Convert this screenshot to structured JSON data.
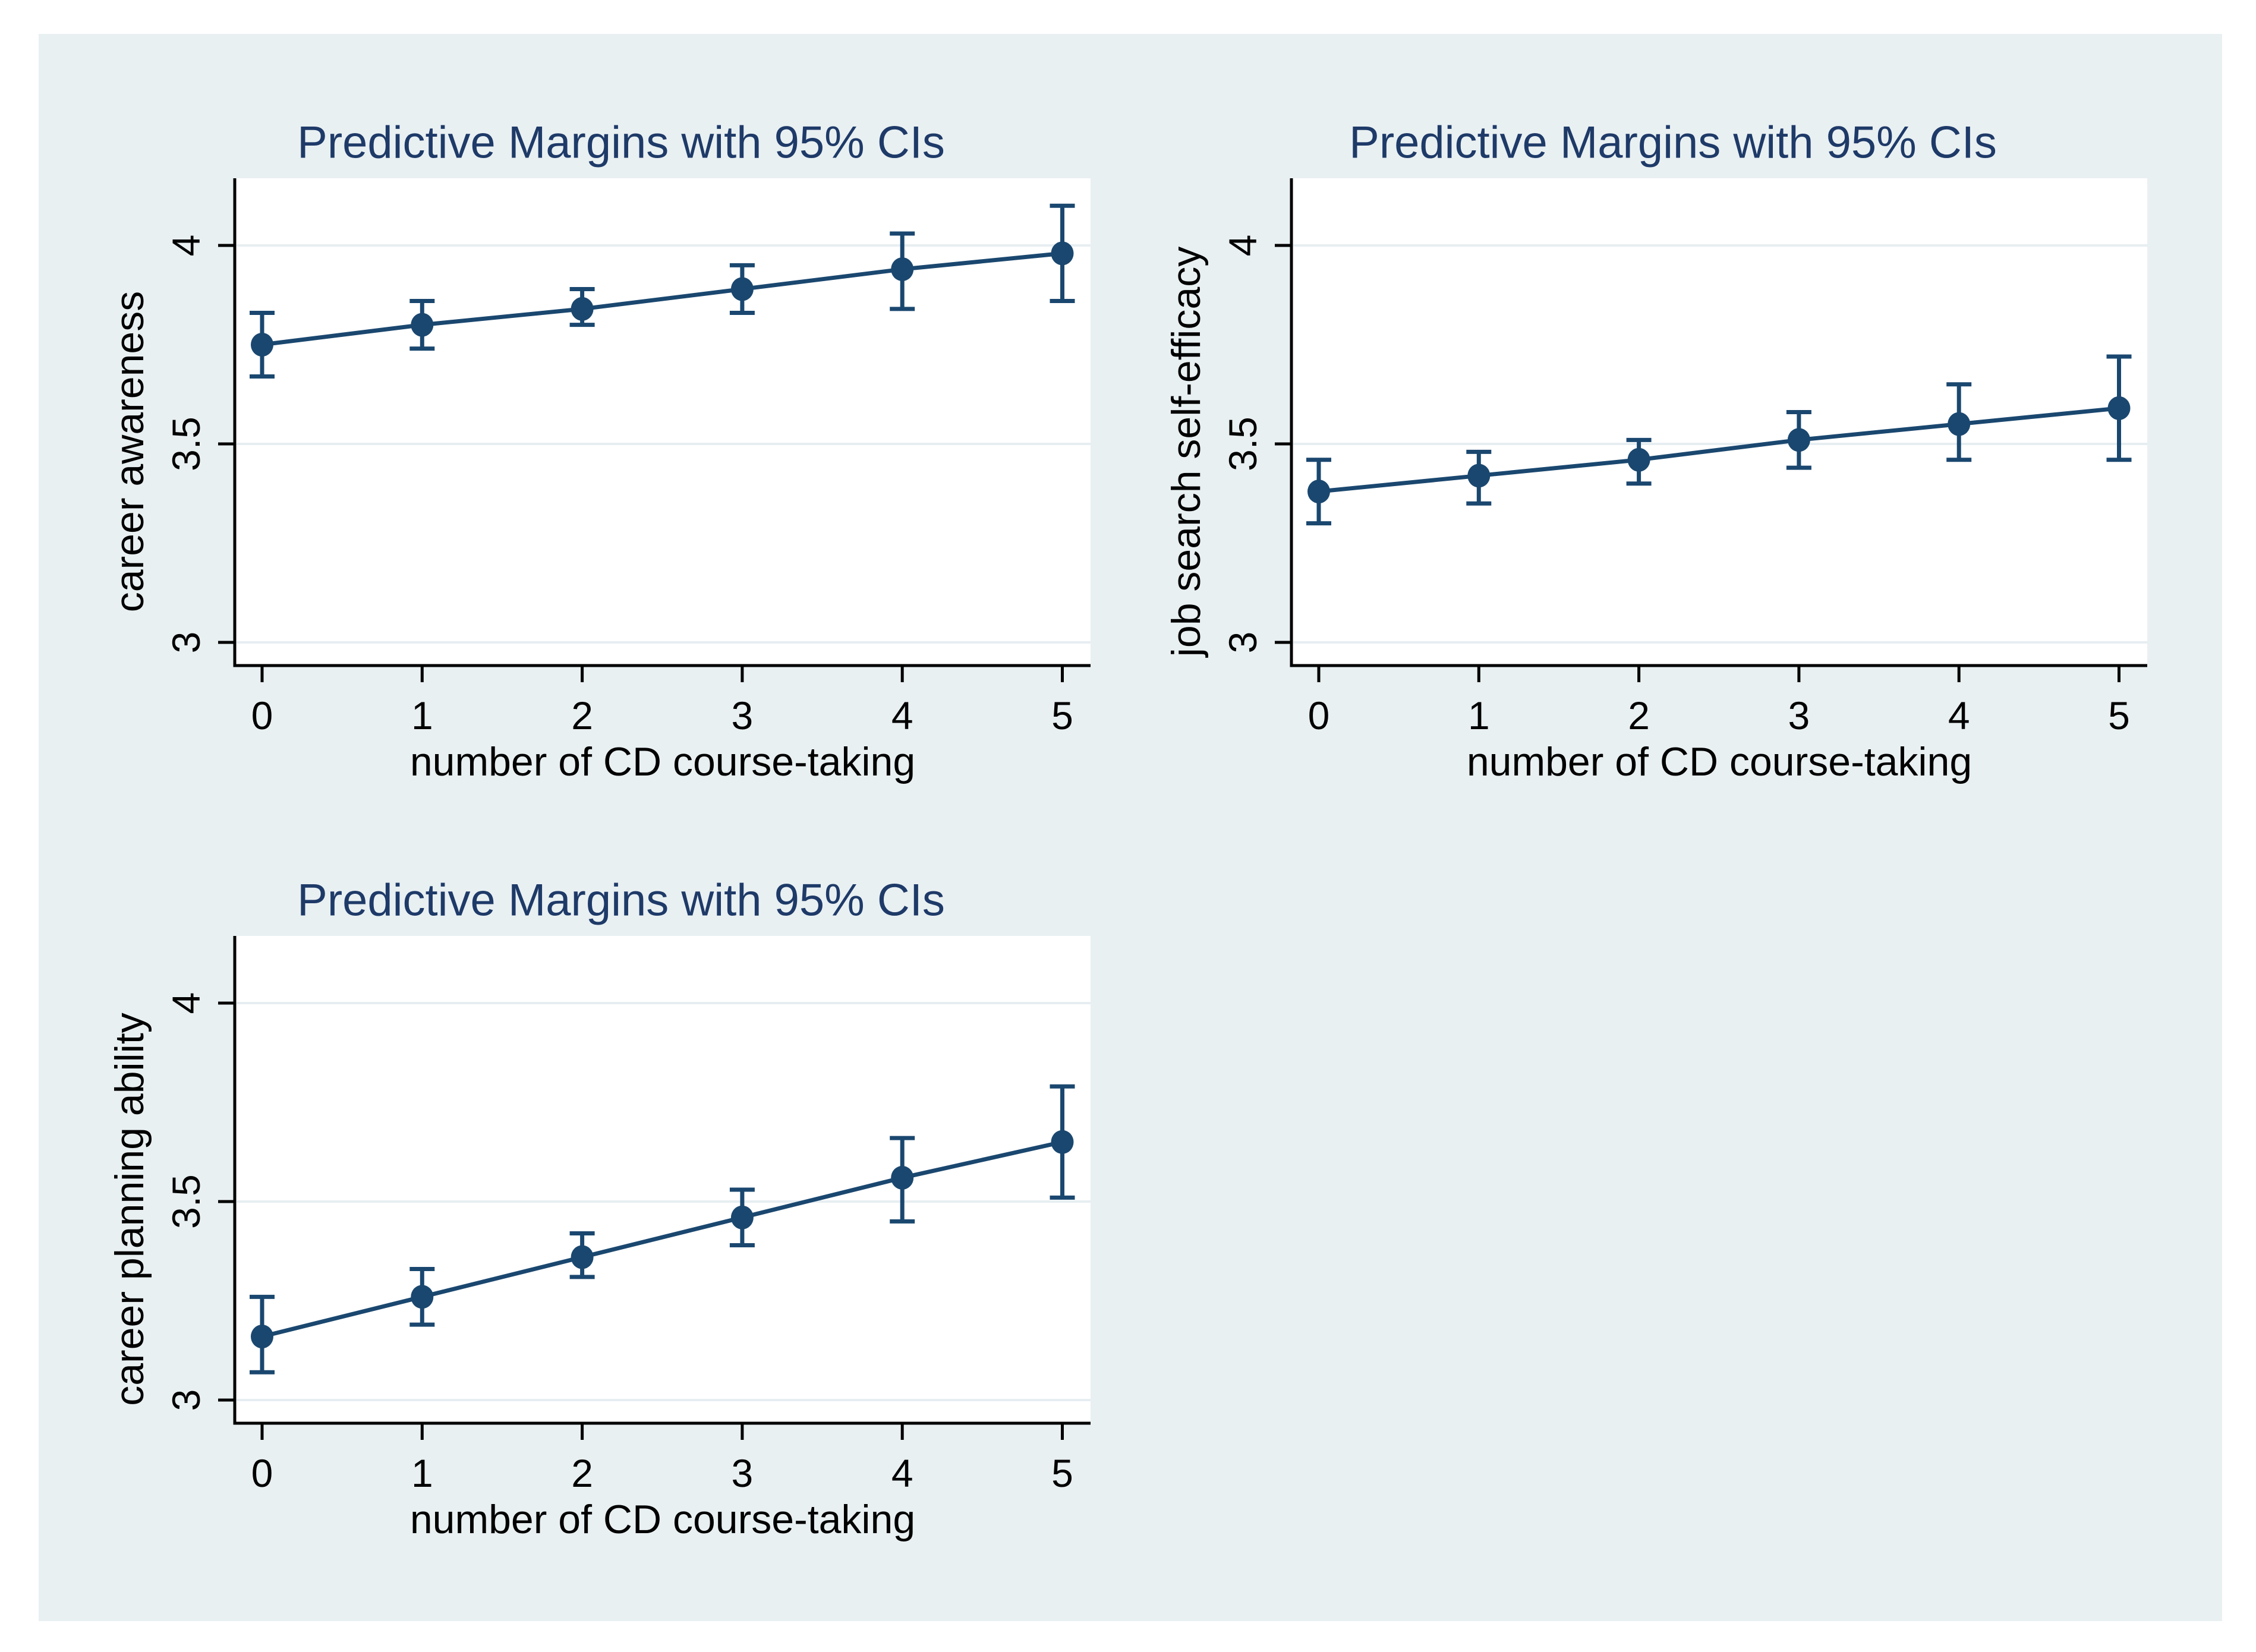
{
  "colors": {
    "series_navy": "#1a476f",
    "title_navy": "#1e3a68",
    "axis_black": "#000000",
    "gridline": "#e7eef2",
    "plot_background": "#ffffff",
    "canvas_background": "#e9f0f2",
    "page_background": "#ffffff"
  },
  "chart_data": [
    {
      "type": "line",
      "title": "Predictive Margins with 95% CIs",
      "xlabel": "number of CD course-taking",
      "ylabel": "career awareness",
      "legend": "none",
      "grid": "horizontal",
      "error_bars": "95% confidence intervals, capped",
      "x": [
        0,
        1,
        2,
        3,
        4,
        5
      ],
      "x_tick_labels": [
        "0",
        "1",
        "2",
        "3",
        "4",
        "5"
      ],
      "y_ticks": [
        3,
        3.5,
        4
      ],
      "y_tick_labels": [
        "3",
        "3.5",
        "4"
      ],
      "ylim": [
        2.94,
        4.17
      ],
      "values": [
        3.75,
        3.8,
        3.84,
        3.89,
        3.94,
        3.98
      ],
      "ci_low": [
        3.67,
        3.74,
        3.8,
        3.83,
        3.84,
        3.86
      ],
      "ci_high": [
        3.83,
        3.86,
        3.89,
        3.95,
        4.03,
        4.1
      ]
    },
    {
      "type": "line",
      "title": "Predictive Margins with 95% CIs",
      "xlabel": "number of CD course-taking",
      "ylabel": "job search self-efficacy",
      "legend": "none",
      "grid": "horizontal",
      "error_bars": "95% confidence intervals, capped",
      "x": [
        0,
        1,
        2,
        3,
        4,
        5
      ],
      "x_tick_labels": [
        "0",
        "1",
        "2",
        "3",
        "4",
        "5"
      ],
      "y_ticks": [
        3,
        3.5,
        4
      ],
      "y_tick_labels": [
        "3",
        "3.5",
        "4"
      ],
      "ylim": [
        2.94,
        4.17
      ],
      "values": [
        3.38,
        3.42,
        3.46,
        3.51,
        3.55,
        3.59
      ],
      "ci_low": [
        3.3,
        3.35,
        3.4,
        3.44,
        3.46,
        3.46
      ],
      "ci_high": [
        3.46,
        3.48,
        3.51,
        3.58,
        3.65,
        3.72
      ]
    },
    {
      "type": "line",
      "title": "Predictive Margins with 95% CIs",
      "xlabel": "number of CD course-taking",
      "ylabel": "career planning ability",
      "legend": "none",
      "grid": "horizontal",
      "error_bars": "95% confidence intervals, capped",
      "x": [
        0,
        1,
        2,
        3,
        4,
        5
      ],
      "x_tick_labels": [
        "0",
        "1",
        "2",
        "3",
        "4",
        "5"
      ],
      "y_ticks": [
        3,
        3.5,
        4
      ],
      "y_tick_labels": [
        "3",
        "3.5",
        "4"
      ],
      "ylim": [
        2.94,
        4.17
      ],
      "values": [
        3.16,
        3.26,
        3.36,
        3.46,
        3.56,
        3.65
      ],
      "ci_low": [
        3.07,
        3.19,
        3.31,
        3.39,
        3.45,
        3.51
      ],
      "ci_high": [
        3.26,
        3.33,
        3.42,
        3.53,
        3.66,
        3.79
      ]
    }
  ]
}
